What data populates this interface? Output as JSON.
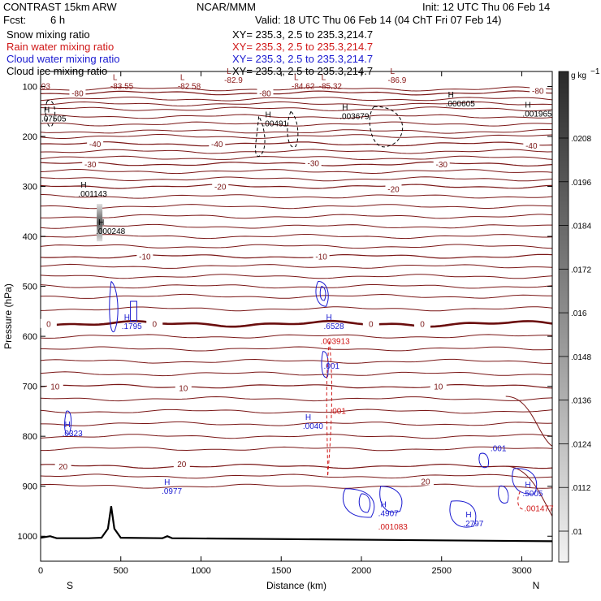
{
  "header": {
    "model": "CONTRAST 15km ARW",
    "org": "NCAR/MMM",
    "init": "Init: 12 UTC Thu 06 Feb 14",
    "fcst_label": "Fcst:",
    "fcst_value": "6 h",
    "valid": "Valid: 18 UTC Thu 06 Feb 14 (04 ChT Fri 07 Feb 14)",
    "fields": [
      {
        "name": "Snow mixing ratio",
        "xy": "XY= 235.3,  2.5 to 235.3,214.7",
        "color": "#000000"
      },
      {
        "name": "Rain water mixing ratio",
        "xy": "XY= 235.3,  2.5 to 235.3,214.7",
        "color": "#d01818"
      },
      {
        "name": "Cloud water mixing ratio",
        "xy": "XY= 235.3,  2.5 to 235.3,214.7",
        "color": "#1a1ad0"
      },
      {
        "name": "Cloud ice mixing ratio",
        "xy": "XY= 235.3,  2.5 to 235.3,214.7",
        "color": "#000000"
      }
    ]
  },
  "chart_data": {
    "type": "cross-section contour",
    "xlabel": "Distance (km)",
    "ylabel": "Pressure (hPa)",
    "xlim": [
      0,
      3190
    ],
    "ylim": [
      1050,
      70
    ],
    "x_ticks": [
      0,
      500,
      1000,
      1500,
      2000,
      2500,
      3000
    ],
    "y_ticks": [
      100,
      200,
      300,
      400,
      500,
      600,
      700,
      800,
      900,
      1000
    ],
    "end_labels": {
      "left": "S",
      "right": "N"
    },
    "colorbar": {
      "unit": "g kg",
      "unit_exp": "−1",
      "tick_labels": [
        ".0208",
        ".0196",
        ".0184",
        ".0172",
        ".016",
        ".0148",
        ".0136",
        ".0124",
        ".0112",
        ".01"
      ]
    },
    "temperature_contours": [
      {
        "value": -80,
        "pressure": 113
      },
      {
        "value": -40,
        "pressure": 215
      },
      {
        "value": -30,
        "pressure": 255
      },
      {
        "value": -20,
        "pressure": 300
      },
      {
        "value": -10,
        "pressure": 440
      },
      {
        "value": 0,
        "pressure": 575
      },
      {
        "value": 10,
        "pressure": 700
      },
      {
        "value": 20,
        "pressure": 860
      }
    ],
    "temperature_labels": [
      {
        "text": "-80",
        "x": 230,
        "p": 113
      },
      {
        "text": "-80",
        "x": 1400,
        "p": 113
      },
      {
        "text": "-80",
        "x": 3100,
        "p": 108
      },
      {
        "text": "-40",
        "x": 340,
        "p": 215
      },
      {
        "text": "-40",
        "x": 1100,
        "p": 215
      },
      {
        "text": "-40",
        "x": 3060,
        "p": 218
      },
      {
        "text": "-30",
        "x": 310,
        "p": 255
      },
      {
        "text": "-30",
        "x": 1700,
        "p": 253
      },
      {
        "text": "-30",
        "x": 2500,
        "p": 255
      },
      {
        "text": "-20",
        "x": 1120,
        "p": 300
      },
      {
        "text": "-20",
        "x": 2200,
        "p": 305
      },
      {
        "text": "-10",
        "x": 650,
        "p": 440
      },
      {
        "text": "-10",
        "x": 1750,
        "p": 440
      },
      {
        "text": "0",
        "x": 50,
        "p": 575
      },
      {
        "text": "0",
        "x": 710,
        "p": 575
      },
      {
        "text": "0",
        "x": 2060,
        "p": 575
      },
      {
        "text": "0",
        "x": 2380,
        "p": 575
      },
      {
        "text": "10",
        "x": 90,
        "p": 700
      },
      {
        "text": "10",
        "x": 890,
        "p": 703
      },
      {
        "text": "10",
        "x": 2480,
        "p": 700
      },
      {
        "text": "20",
        "x": 140,
        "p": 860
      },
      {
        "text": "20",
        "x": 880,
        "p": 855
      },
      {
        "text": "20",
        "x": 2400,
        "p": 890
      }
    ],
    "extrema": [
      {
        "mark": "L",
        "text": "-83.55",
        "x": 450,
        "p": 100,
        "color": "#8b1a1a"
      },
      {
        "mark": "L",
        "text": "-82.58",
        "x": 870,
        "p": 100,
        "color": "#8b1a1a"
      },
      {
        "mark": "L",
        "text": "-82.9",
        "x": 1160,
        "p": 88,
        "color": "#8b1a1a"
      },
      {
        "mark": "L",
        "text": "-84.62",
        "x": 1580,
        "p": 100,
        "color": "#8b1a1a"
      },
      {
        "mark": "L",
        "text": "-85.32",
        "x": 1750,
        "p": 100,
        "color": "#8b1a1a"
      },
      {
        "mark": "L",
        "text": "-86.9",
        "x": 2180,
        "p": 88,
        "color": "#8b1a1a"
      },
      {
        "mark": "",
        "text": ".03",
        "x": 5,
        "p": 100,
        "color": "#8b1a1a"
      },
      {
        "mark": "H",
        "text": ".07505",
        "x": 20,
        "p": 165,
        "color": "#000000"
      },
      {
        "mark": "H",
        "text": ".00491",
        "x": 1400,
        "p": 175,
        "color": "#000000"
      },
      {
        "mark": "H",
        "text": ".003679",
        "x": 1880,
        "p": 160,
        "color": "#000000"
      },
      {
        "mark": "H",
        "text": ".000605",
        "x": 2540,
        "p": 135,
        "color": "#000000"
      },
      {
        "mark": "H",
        "text": ".001965",
        "x": 3020,
        "p": 155,
        "color": "#000000"
      },
      {
        "mark": "H",
        "text": ".001143",
        "x": 250,
        "p": 315,
        "color": "#000000"
      },
      {
        "mark": "H",
        "text": ".000248",
        "x": 360,
        "p": 390,
        "color": "#000000"
      },
      {
        "mark": "H",
        "text": ".1795",
        "x": 520,
        "p": 580,
        "color": "#1a1ad0"
      },
      {
        "mark": "H",
        "text": ".6528",
        "x": 1780,
        "p": 580,
        "color": "#1a1ad0"
      },
      {
        "mark": "",
        "text": ".003913",
        "x": 1760,
        "p": 610,
        "color": "#d01818"
      },
      {
        "mark": "",
        "text": ".001",
        "x": 1780,
        "p": 660,
        "color": "#1a1ad0"
      },
      {
        "mark": "",
        "text": ".001",
        "x": 1820,
        "p": 750,
        "color": "#d01818"
      },
      {
        "mark": "H",
        "text": ".0323",
        "x": 150,
        "p": 795,
        "color": "#1a1ad0"
      },
      {
        "mark": "H",
        "text": ".0040",
        "x": 1650,
        "p": 780,
        "color": "#1a1ad0"
      },
      {
        "mark": "",
        "text": ".001",
        "x": 2820,
        "p": 825,
        "color": "#1a1ad0"
      },
      {
        "mark": "H",
        "text": ".0977",
        "x": 770,
        "p": 910,
        "color": "#1a1ad0"
      },
      {
        "mark": "H",
        "text": ".4907",
        "x": 2120,
        "p": 955,
        "color": "#1a1ad0"
      },
      {
        "mark": "",
        "text": ".001083",
        "x": 2120,
        "p": 982,
        "color": "#d01818"
      },
      {
        "mark": "H",
        "text": ".2797",
        "x": 2650,
        "p": 975,
        "color": "#1a1ad0"
      },
      {
        "mark": "H",
        "text": ".5005",
        "x": 3020,
        "p": 915,
        "color": "#1a1ad0"
      },
      {
        "mark": "",
        "text": ".001477",
        "x": 3030,
        "p": 945,
        "color": "#d01818"
      }
    ]
  }
}
